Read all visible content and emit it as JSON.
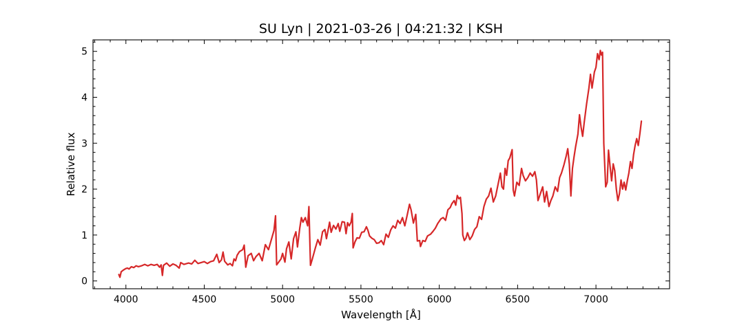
{
  "chart_data": {
    "type": "line",
    "title": "SU Lyn | 2021-03-26 | 04:21:32 | KSH",
    "xlabel": "Wavelength [Å]",
    "ylabel": "Relative flux",
    "xlim": [
      3790,
      7470
    ],
    "ylim": [
      -0.17,
      5.25
    ],
    "x_ticks": [
      4000,
      4500,
      5000,
      5500,
      6000,
      6500,
      7000
    ],
    "y_ticks": [
      0,
      1,
      2,
      3,
      4,
      5
    ],
    "x_minor_step": 100,
    "y_minor_step": 0.2,
    "ticks_direction": "in",
    "ticks_on_all_sides": true,
    "grid": false,
    "legend": "none",
    "series": [
      {
        "color": "#d62728",
        "points": [
          [
            3955,
            0.14
          ],
          [
            3962,
            0.08
          ],
          [
            3970,
            0.2
          ],
          [
            3985,
            0.24
          ],
          [
            4000,
            0.27
          ],
          [
            4010,
            0.28
          ],
          [
            4020,
            0.26
          ],
          [
            4035,
            0.31
          ],
          [
            4050,
            0.29
          ],
          [
            4065,
            0.33
          ],
          [
            4080,
            0.31
          ],
          [
            4100,
            0.33
          ],
          [
            4120,
            0.36
          ],
          [
            4140,
            0.33
          ],
          [
            4160,
            0.36
          ],
          [
            4180,
            0.34
          ],
          [
            4200,
            0.36
          ],
          [
            4215,
            0.3
          ],
          [
            4225,
            0.35
          ],
          [
            4233,
            0.12
          ],
          [
            4240,
            0.34
          ],
          [
            4260,
            0.39
          ],
          [
            4280,
            0.32
          ],
          [
            4300,
            0.37
          ],
          [
            4320,
            0.34
          ],
          [
            4340,
            0.28
          ],
          [
            4350,
            0.4
          ],
          [
            4370,
            0.36
          ],
          [
            4400,
            0.39
          ],
          [
            4420,
            0.37
          ],
          [
            4440,
            0.45
          ],
          [
            4460,
            0.38
          ],
          [
            4480,
            0.4
          ],
          [
            4500,
            0.42
          ],
          [
            4520,
            0.38
          ],
          [
            4540,
            0.42
          ],
          [
            4560,
            0.44
          ],
          [
            4580,
            0.58
          ],
          [
            4595,
            0.4
          ],
          [
            4610,
            0.46
          ],
          [
            4620,
            0.63
          ],
          [
            4630,
            0.43
          ],
          [
            4650,
            0.35
          ],
          [
            4665,
            0.38
          ],
          [
            4680,
            0.33
          ],
          [
            4690,
            0.48
          ],
          [
            4700,
            0.44
          ],
          [
            4710,
            0.56
          ],
          [
            4725,
            0.64
          ],
          [
            4745,
            0.68
          ],
          [
            4755,
            0.78
          ],
          [
            4765,
            0.3
          ],
          [
            4780,
            0.55
          ],
          [
            4800,
            0.6
          ],
          [
            4815,
            0.44
          ],
          [
            4830,
            0.53
          ],
          [
            4850,
            0.6
          ],
          [
            4870,
            0.44
          ],
          [
            4890,
            0.79
          ],
          [
            4910,
            0.68
          ],
          [
            4930,
            0.92
          ],
          [
            4945,
            1.1
          ],
          [
            4955,
            1.42
          ],
          [
            4962,
            0.35
          ],
          [
            4975,
            0.41
          ],
          [
            4990,
            0.48
          ],
          [
            5000,
            0.6
          ],
          [
            5015,
            0.41
          ],
          [
            5025,
            0.7
          ],
          [
            5040,
            0.85
          ],
          [
            5055,
            0.48
          ],
          [
            5070,
            0.92
          ],
          [
            5085,
            1.07
          ],
          [
            5095,
            0.74
          ],
          [
            5110,
            1.16
          ],
          [
            5120,
            1.38
          ],
          [
            5130,
            1.28
          ],
          [
            5145,
            1.38
          ],
          [
            5160,
            1.2
          ],
          [
            5168,
            1.62
          ],
          [
            5178,
            0.34
          ],
          [
            5190,
            0.48
          ],
          [
            5210,
            0.73
          ],
          [
            5225,
            0.9
          ],
          [
            5240,
            0.78
          ],
          [
            5255,
            1.07
          ],
          [
            5270,
            1.12
          ],
          [
            5280,
            0.92
          ],
          [
            5300,
            1.28
          ],
          [
            5310,
            1.06
          ],
          [
            5325,
            1.21
          ],
          [
            5340,
            1.13
          ],
          [
            5355,
            1.25
          ],
          [
            5365,
            1.08
          ],
          [
            5380,
            1.29
          ],
          [
            5395,
            1.28
          ],
          [
            5405,
            1.03
          ],
          [
            5415,
            1.27
          ],
          [
            5425,
            1.2
          ],
          [
            5437,
            1.28
          ],
          [
            5445,
            1.47
          ],
          [
            5450,
            0.72
          ],
          [
            5462,
            0.85
          ],
          [
            5475,
            0.94
          ],
          [
            5490,
            0.93
          ],
          [
            5505,
            1.06
          ],
          [
            5520,
            1.07
          ],
          [
            5535,
            1.18
          ],
          [
            5545,
            1.1
          ],
          [
            5555,
            0.98
          ],
          [
            5570,
            0.93
          ],
          [
            5585,
            0.9
          ],
          [
            5600,
            0.82
          ],
          [
            5615,
            0.83
          ],
          [
            5630,
            0.88
          ],
          [
            5645,
            0.79
          ],
          [
            5660,
            1.02
          ],
          [
            5675,
            0.95
          ],
          [
            5690,
            1.11
          ],
          [
            5705,
            1.2
          ],
          [
            5720,
            1.15
          ],
          [
            5735,
            1.32
          ],
          [
            5750,
            1.25
          ],
          [
            5765,
            1.38
          ],
          [
            5780,
            1.2
          ],
          [
            5795,
            1.43
          ],
          [
            5810,
            1.67
          ],
          [
            5820,
            1.55
          ],
          [
            5835,
            1.26
          ],
          [
            5850,
            1.45
          ],
          [
            5860,
            0.87
          ],
          [
            5875,
            0.88
          ],
          [
            5880,
            0.75
          ],
          [
            5895,
            0.88
          ],
          [
            5910,
            0.86
          ],
          [
            5925,
            0.98
          ],
          [
            5945,
            1.02
          ],
          [
            5960,
            1.08
          ],
          [
            5975,
            1.15
          ],
          [
            5990,
            1.25
          ],
          [
            6010,
            1.35
          ],
          [
            6025,
            1.38
          ],
          [
            6040,
            1.32
          ],
          [
            6055,
            1.55
          ],
          [
            6070,
            1.6
          ],
          [
            6080,
            1.68
          ],
          [
            6095,
            1.75
          ],
          [
            6105,
            1.65
          ],
          [
            6115,
            1.86
          ],
          [
            6125,
            1.79
          ],
          [
            6135,
            1.82
          ],
          [
            6145,
            1.47
          ],
          [
            6150,
            1.0
          ],
          [
            6160,
            0.88
          ],
          [
            6170,
            0.93
          ],
          [
            6180,
            1.05
          ],
          [
            6195,
            0.9
          ],
          [
            6210,
            0.98
          ],
          [
            6225,
            1.12
          ],
          [
            6240,
            1.18
          ],
          [
            6255,
            1.4
          ],
          [
            6270,
            1.34
          ],
          [
            6285,
            1.62
          ],
          [
            6300,
            1.78
          ],
          [
            6315,
            1.85
          ],
          [
            6330,
            2.02
          ],
          [
            6345,
            1.72
          ],
          [
            6360,
            1.85
          ],
          [
            6375,
            2.1
          ],
          [
            6390,
            2.35
          ],
          [
            6400,
            2.05
          ],
          [
            6410,
            2.0
          ],
          [
            6420,
            2.45
          ],
          [
            6430,
            2.3
          ],
          [
            6440,
            2.62
          ],
          [
            6450,
            2.68
          ],
          [
            6465,
            2.86
          ],
          [
            6472,
            1.98
          ],
          [
            6480,
            1.85
          ],
          [
            6495,
            2.15
          ],
          [
            6510,
            2.08
          ],
          [
            6525,
            2.45
          ],
          [
            6535,
            2.3
          ],
          [
            6550,
            2.18
          ],
          [
            6565,
            2.25
          ],
          [
            6580,
            2.35
          ],
          [
            6595,
            2.28
          ],
          [
            6610,
            2.38
          ],
          [
            6620,
            2.2
          ],
          [
            6630,
            1.75
          ],
          [
            6645,
            1.9
          ],
          [
            6660,
            2.05
          ],
          [
            6672,
            1.72
          ],
          [
            6685,
            1.95
          ],
          [
            6700,
            1.62
          ],
          [
            6712,
            1.75
          ],
          [
            6725,
            1.85
          ],
          [
            6740,
            2.05
          ],
          [
            6755,
            1.95
          ],
          [
            6768,
            2.25
          ],
          [
            6780,
            2.35
          ],
          [
            6795,
            2.52
          ],
          [
            6810,
            2.72
          ],
          [
            6820,
            2.88
          ],
          [
            6830,
            2.55
          ],
          [
            6840,
            1.85
          ],
          [
            6850,
            2.45
          ],
          [
            6860,
            2.7
          ],
          [
            6870,
            2.92
          ],
          [
            6885,
            3.2
          ],
          [
            6895,
            3.62
          ],
          [
            6905,
            3.35
          ],
          [
            6915,
            3.15
          ],
          [
            6925,
            3.45
          ],
          [
            6940,
            3.85
          ],
          [
            6955,
            4.2
          ],
          [
            6965,
            4.5
          ],
          [
            6975,
            4.2
          ],
          [
            6990,
            4.55
          ],
          [
            7000,
            4.65
          ],
          [
            7010,
            4.95
          ],
          [
            7020,
            4.82
          ],
          [
            7028,
            5.02
          ],
          [
            7035,
            4.92
          ],
          [
            7042,
            4.98
          ],
          [
            7050,
            3.0
          ],
          [
            7062,
            2.05
          ],
          [
            7072,
            2.15
          ],
          [
            7080,
            2.85
          ],
          [
            7090,
            2.5
          ],
          [
            7100,
            2.18
          ],
          [
            7110,
            2.55
          ],
          [
            7120,
            2.4
          ],
          [
            7130,
            2.0
          ],
          [
            7140,
            1.75
          ],
          [
            7150,
            1.9
          ],
          [
            7160,
            2.2
          ],
          [
            7170,
            2.0
          ],
          [
            7180,
            2.15
          ],
          [
            7190,
            1.98
          ],
          [
            7200,
            2.18
          ],
          [
            7210,
            2.35
          ],
          [
            7220,
            2.6
          ],
          [
            7230,
            2.45
          ],
          [
            7240,
            2.75
          ],
          [
            7250,
            2.95
          ],
          [
            7260,
            3.1
          ],
          [
            7270,
            2.95
          ],
          [
            7280,
            3.2
          ],
          [
            7290,
            3.48
          ]
        ]
      }
    ]
  }
}
